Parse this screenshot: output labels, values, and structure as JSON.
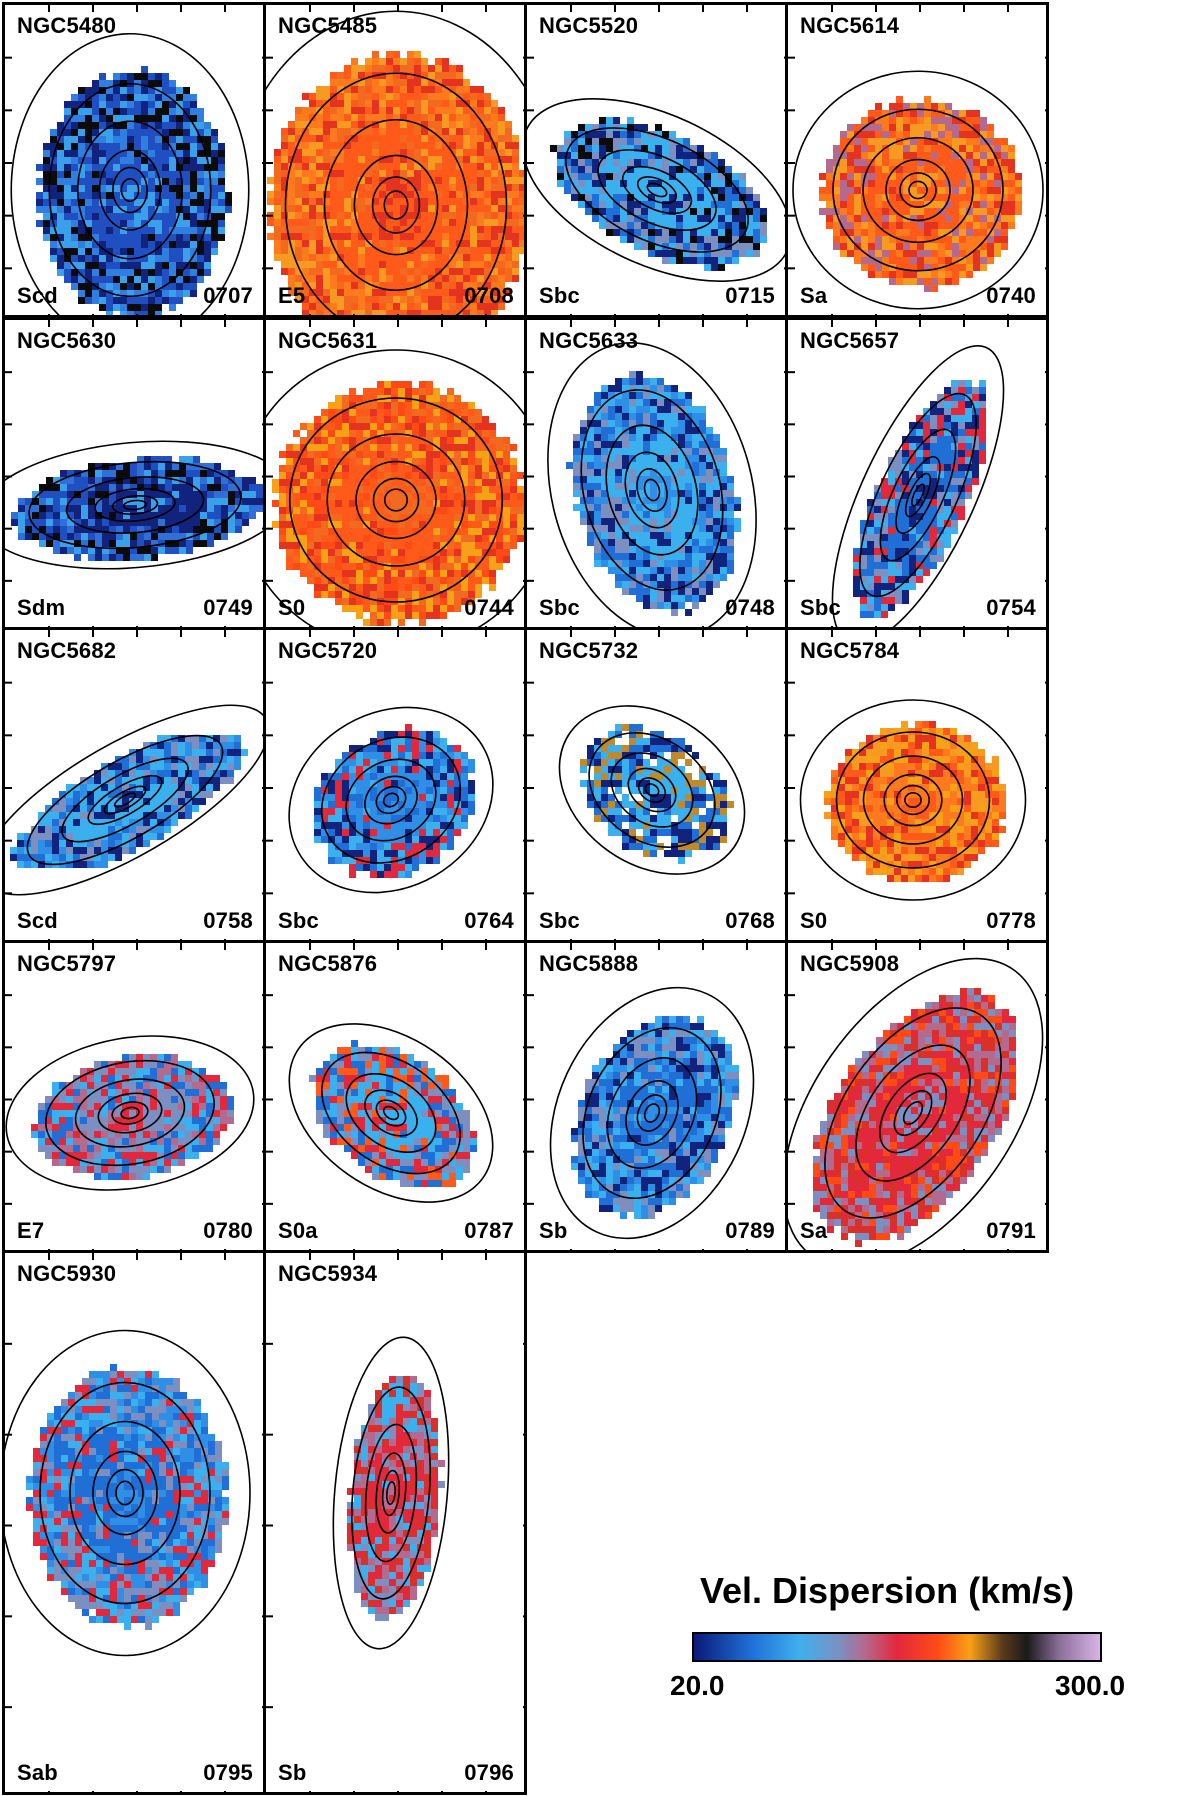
{
  "legend": {
    "title": "Vel. Dispersion (km/s)",
    "min": "20.0",
    "max": "300.0"
  },
  "colormap": [
    "#0a1a7a",
    "#1f6fd6",
    "#3fb0ee",
    "#7d8fc0",
    "#b46a8f",
    "#e4283c",
    "#ff4a16",
    "#f7a116",
    "#5a3a1a",
    "#1a1a1a",
    "#8c6f9a",
    "#d9b4e6"
  ],
  "galaxies": [
    {
      "name": "NGC5480",
      "type": "Scd",
      "id": "0707",
      "palette": [
        "#1f4fc0",
        "#2f7ee0",
        "#3aa0ea",
        "#12237e",
        "#0b0b0b"
      ]
    },
    {
      "name": "NGC5485",
      "type": "E5",
      "id": "0708",
      "palette": [
        "#ff5a1a",
        "#f26a20",
        "#e4331e",
        "#f79a22",
        "#ff7a1c"
      ]
    },
    {
      "name": "NGC5520",
      "type": "Sbc",
      "id": "0715",
      "palette": [
        "#3ab0ee",
        "#1f6fd6",
        "#12237e",
        "#7d8fc0",
        "#0b0b0b"
      ]
    },
    {
      "name": "NGC5614",
      "type": "Sa",
      "id": "0740",
      "palette": [
        "#ff5a1a",
        "#e4331e",
        "#f79a22",
        "#b46a8f",
        "#ff7a1c"
      ]
    },
    {
      "name": "NGC5630",
      "type": "Sdm",
      "id": "0749",
      "palette": [
        "#12237e",
        "#1f4fc0",
        "#3aa0ea",
        "#0b0b0b",
        "#2f6fd6"
      ]
    },
    {
      "name": "NGC5631",
      "type": "S0",
      "id": "0744",
      "palette": [
        "#ff5a1a",
        "#e4331e",
        "#f26a20",
        "#f7a116",
        "#ff4a16"
      ]
    },
    {
      "name": "NGC5633",
      "type": "Sbc",
      "id": "0748",
      "palette": [
        "#3ab0ee",
        "#1f6fd6",
        "#2f8ee6",
        "#7d8fc0",
        "#12237e"
      ]
    },
    {
      "name": "NGC5657",
      "type": "Sbc",
      "id": "0754",
      "palette": [
        "#1f6fd6",
        "#3ab0ee",
        "#12237e",
        "#e4283c",
        "#7d8fc0"
      ]
    },
    {
      "name": "NGC5682",
      "type": "Scd",
      "id": "0758",
      "palette": [
        "#3ab0ee",
        "#1f6fd6",
        "#12237e",
        "#7d8fc0",
        "#2f8ee6"
      ]
    },
    {
      "name": "NGC5720",
      "type": "Sbc",
      "id": "0764",
      "palette": [
        "#2f8ee6",
        "#3ab0ee",
        "#1f6fd6",
        "#12237e",
        "#e4283c"
      ]
    },
    {
      "name": "NGC5732",
      "type": "Sbc",
      "id": "0768",
      "palette": [
        "#3ab0ee",
        "#1f6fd6",
        "#12237e",
        "#c08a2a",
        "#ffffff"
      ]
    },
    {
      "name": "NGC5784",
      "type": "S0",
      "id": "0778",
      "palette": [
        "#ff7a1c",
        "#f79a22",
        "#ff5a1a",
        "#e4331e",
        "#f7a116"
      ]
    },
    {
      "name": "NGC5797",
      "type": "E7",
      "id": "0780",
      "palette": [
        "#7d8fc0",
        "#3ab0ee",
        "#e4283c",
        "#1f6fd6",
        "#b46a8f"
      ]
    },
    {
      "name": "NGC5876",
      "type": "S0a",
      "id": "0787",
      "palette": [
        "#3ab0ee",
        "#1f6fd6",
        "#e4283c",
        "#ff5a1a",
        "#7d8fc0"
      ]
    },
    {
      "name": "NGC5888",
      "type": "Sb",
      "id": "0789",
      "palette": [
        "#1f6fd6",
        "#3ab0ee",
        "#2f8ee6",
        "#7d8fc0",
        "#12237e"
      ]
    },
    {
      "name": "NGC5908",
      "type": "Sa",
      "id": "0791",
      "palette": [
        "#e4283c",
        "#ff4a16",
        "#7d8fc0",
        "#b46a8f",
        "#d9302a"
      ]
    },
    {
      "name": "NGC5930",
      "type": "Sab",
      "id": "0795",
      "palette": [
        "#1f6fd6",
        "#3ab0ee",
        "#2f8ee6",
        "#7d8fc0",
        "#e4283c"
      ]
    },
    {
      "name": "NGC5934",
      "type": "Sb",
      "id": "0796",
      "palette": [
        "#e4283c",
        "#7d8fc0",
        "#b46a8f",
        "#3ab0ee",
        "#d9302a"
      ]
    }
  ]
}
